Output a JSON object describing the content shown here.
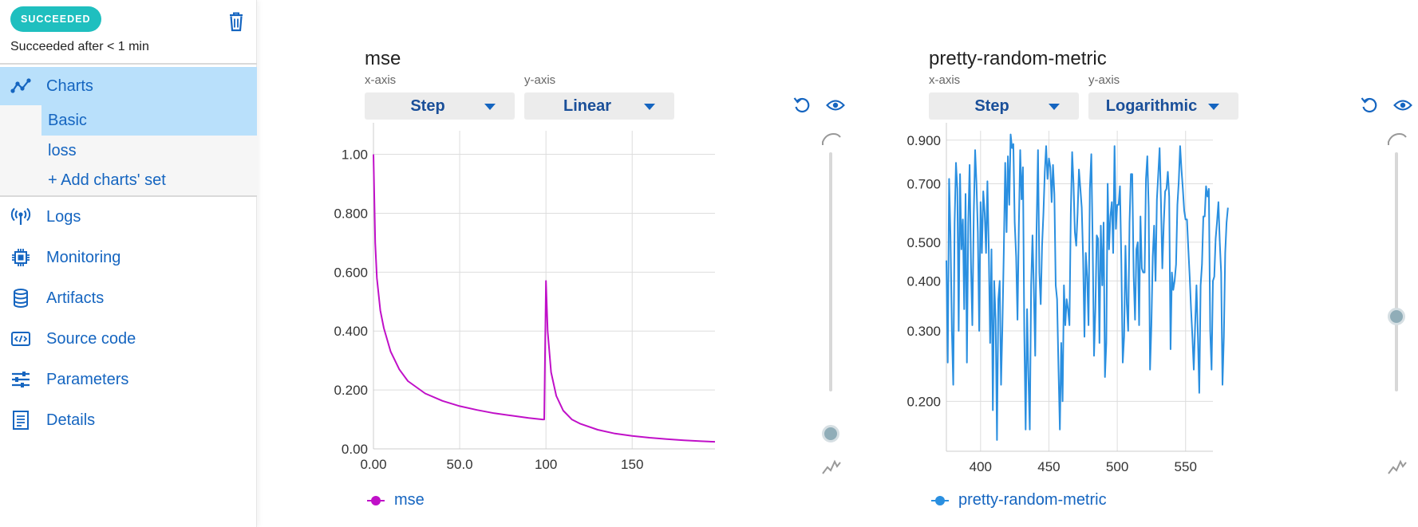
{
  "sidebar": {
    "status_badge": "SUCCEEDED",
    "status_text": "Succeeded after < 1 min",
    "nav": [
      {
        "label": "Charts",
        "icon": "chart-line-icon"
      },
      {
        "label": "Logs",
        "icon": "broadcast-icon"
      },
      {
        "label": "Monitoring",
        "icon": "cpu-chip-icon"
      },
      {
        "label": "Artifacts",
        "icon": "database-icon"
      },
      {
        "label": "Source code",
        "icon": "code-file-icon"
      },
      {
        "label": "Parameters",
        "icon": "sliders-icon"
      },
      {
        "label": "Details",
        "icon": "document-icon"
      }
    ],
    "chart_sets": [
      {
        "label": "Basic",
        "selected": true
      },
      {
        "label": "loss",
        "selected": false
      },
      {
        "label": "+ Add charts' set",
        "selected": false
      }
    ]
  },
  "colors": {
    "accent": "#1565c0",
    "badge": "#1fbfbf",
    "selected_bg": "#b9e0fb",
    "mse_line": "#c010c8",
    "prm_line": "#2a8fe0"
  },
  "charts": [
    {
      "title": "mse",
      "xaxis_caption": "x-axis",
      "yaxis_caption": "y-axis",
      "xaxis_value": "Step",
      "yaxis_value": "Linear",
      "legend": "mse",
      "smoothing_level": 0.0
    },
    {
      "title": "pretty-random-metric",
      "xaxis_caption": "x-axis",
      "yaxis_caption": "y-axis",
      "xaxis_value": "Step",
      "yaxis_value": "Logarithmic",
      "legend": "pretty-random-metric",
      "smoothing_level": 0.6
    }
  ],
  "chart_data": [
    {
      "type": "line",
      "title": "mse",
      "series": [
        {
          "name": "mse",
          "color": "#c010c8"
        }
      ],
      "xlim": [
        0,
        198
      ],
      "ylim": [
        0,
        1.08
      ],
      "xticks": [
        "0.00",
        "50.0",
        "100",
        "150"
      ],
      "xtick_values": [
        0,
        50,
        100,
        150
      ],
      "yticks": [
        "0.00",
        "0.200",
        "0.400",
        "0.600",
        "0.800",
        "1.00"
      ],
      "ytick_values": [
        0,
        0.2,
        0.4,
        0.6,
        0.8,
        1.0
      ],
      "x": [
        0,
        1,
        2,
        4,
        6,
        10,
        15,
        20,
        30,
        40,
        50,
        60,
        70,
        80,
        90,
        98,
        99,
        100,
        101,
        103,
        106,
        110,
        115,
        120,
        130,
        140,
        150,
        160,
        170,
        180,
        190,
        198
      ],
      "y": [
        1.0,
        0.7,
        0.58,
        0.47,
        0.41,
        0.33,
        0.27,
        0.23,
        0.188,
        0.163,
        0.145,
        0.132,
        0.121,
        0.113,
        0.105,
        0.1,
        0.1,
        0.57,
        0.4,
        0.26,
        0.18,
        0.13,
        0.1,
        0.085,
        0.065,
        0.052,
        0.044,
        0.038,
        0.033,
        0.029,
        0.026,
        0.024
      ],
      "grid": true
    },
    {
      "type": "line",
      "title": "pretty-random-metric",
      "series": [
        {
          "name": "pretty-random-metric",
          "color": "#2a8fe0"
        }
      ],
      "xlim": [
        375,
        570
      ],
      "ylim": [
        0.15,
        0.95
      ],
      "yscale": "log",
      "xticks": [
        "400",
        "450",
        "500",
        "550"
      ],
      "xtick_values": [
        400,
        450,
        500,
        550
      ],
      "yticks": [
        "0.200",
        "0.300",
        "0.400",
        "0.500",
        "0.700",
        "0.900"
      ],
      "ytick_values": [
        0.2,
        0.3,
        0.4,
        0.5,
        0.7,
        0.9
      ],
      "x_start": 375,
      "x_step": 1,
      "y": [
        0.45,
        0.25,
        0.72,
        0.52,
        0.3,
        0.22,
        0.56,
        0.79,
        0.68,
        0.3,
        0.74,
        0.48,
        0.57,
        0.34,
        0.66,
        0.25,
        0.56,
        0.78,
        0.44,
        0.31,
        0.59,
        0.85,
        0.7,
        0.53,
        0.3,
        0.63,
        0.47,
        0.67,
        0.59,
        0.47,
        0.71,
        0.48,
        0.28,
        0.48,
        0.19,
        0.4,
        0.32,
        0.16,
        0.36,
        0.4,
        0.22,
        0.31,
        0.47,
        0.79,
        0.53,
        0.82,
        0.62,
        0.93,
        0.86,
        0.88,
        0.56,
        0.46,
        0.32,
        0.55,
        0.85,
        0.64,
        0.77,
        0.3,
        0.17,
        0.34,
        0.23,
        0.17,
        0.39,
        0.52,
        0.38,
        0.26,
        0.54,
        0.85,
        0.42,
        0.35,
        0.49,
        0.59,
        0.75,
        0.87,
        0.72,
        0.81,
        0.77,
        0.63,
        0.78,
        0.66,
        0.39,
        0.36,
        0.24,
        0.17,
        0.28,
        0.2,
        0.39,
        0.31,
        0.36,
        0.34,
        0.31,
        0.59,
        0.84,
        0.7,
        0.53,
        0.49,
        0.59,
        0.76,
        0.68,
        0.61,
        0.46,
        0.29,
        0.47,
        0.41,
        0.31,
        0.68,
        0.83,
        0.5,
        0.26,
        0.34,
        0.52,
        0.51,
        0.28,
        0.55,
        0.39,
        0.56,
        0.23,
        0.28,
        0.7,
        0.48,
        0.58,
        0.63,
        0.47,
        0.87,
        0.54,
        0.62,
        0.62,
        0.69,
        0.45,
        0.25,
        0.29,
        0.49,
        0.35,
        0.3,
        0.56,
        0.74,
        0.74,
        0.41,
        0.32,
        0.48,
        0.5,
        0.31,
        0.58,
        0.43,
        0.42,
        0.42,
        0.72,
        0.82,
        0.61,
        0.24,
        0.31,
        0.46,
        0.55,
        0.4,
        0.64,
        0.74,
        0.86,
        0.63,
        0.43,
        0.55,
        0.67,
        0.68,
        0.75,
        0.65,
        0.27,
        0.42,
        0.38,
        0.4,
        0.44,
        0.62,
        0.71,
        0.87,
        0.76,
        0.68,
        0.6,
        0.57,
        0.57,
        0.48,
        0.41,
        0.34,
        0.29,
        0.24,
        0.31,
        0.39,
        0.29,
        0.21,
        0.39,
        0.44,
        0.58,
        0.58,
        0.69,
        0.65,
        0.68,
        0.3,
        0.24,
        0.4,
        0.41,
        0.51,
        0.56,
        0.63,
        0.5,
        0.42,
        0.22,
        0.29,
        0.47,
        0.56,
        0.61
      ],
      "grid": true
    }
  ]
}
